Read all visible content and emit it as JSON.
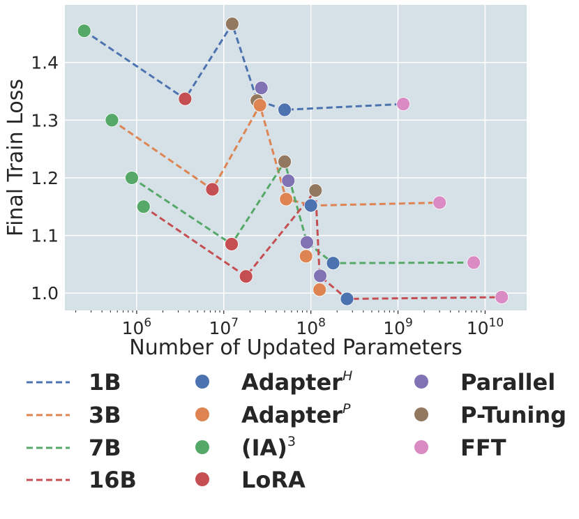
{
  "chart_data": {
    "type": "scatter",
    "title": "",
    "xlabel": "Number of Updated Parameters",
    "ylabel": "Final Train Loss",
    "xscale": "log",
    "xlim": [
      150000,
      30000000000
    ],
    "ylim": [
      0.97,
      1.5
    ],
    "yticks": [
      1.0,
      1.1,
      1.2,
      1.3,
      1.4
    ],
    "ytick_labels": [
      "1.0",
      "1.1",
      "1.2",
      "1.3",
      "1.4"
    ],
    "xticks": [
      1000000,
      10000000,
      100000000,
      1000000000,
      10000000000
    ],
    "xtick_labels": [
      {
        "base": "10",
        "exp": "6"
      },
      {
        "base": "10",
        "exp": "7"
      },
      {
        "base": "10",
        "exp": "8"
      },
      {
        "base": "10",
        "exp": "9"
      },
      {
        "base": "10",
        "exp": "10"
      }
    ],
    "grid": true,
    "legend_position": "bottom",
    "methods": [
      {
        "key": "adapter_h",
        "label": "Adapter",
        "sup": "H",
        "italic_sup": true,
        "color": "#4C72B0"
      },
      {
        "key": "adapter_p",
        "label": "Adapter",
        "sup": "P",
        "italic_sup": true,
        "color": "#DD8452"
      },
      {
        "key": "ia3",
        "label": "(IA)",
        "sup": "3",
        "italic_sup": false,
        "color": "#55A868"
      },
      {
        "key": "lora",
        "label": "LoRA",
        "sup": "",
        "italic_sup": false,
        "color": "#C44E52"
      },
      {
        "key": "parallel",
        "label": "Parallel",
        "sup": "",
        "italic_sup": false,
        "color": "#8172B3"
      },
      {
        "key": "ptuning",
        "label": "P-Tuning",
        "sup": "",
        "italic_sup": false,
        "color": "#937860"
      },
      {
        "key": "fft",
        "label": "FFT",
        "sup": "",
        "italic_sup": false,
        "color": "#DA8BC3"
      }
    ],
    "series": [
      {
        "name": "1B",
        "color": "#4C72B0",
        "line": [
          [
            250000,
            1.455
          ],
          [
            3600000,
            1.337
          ],
          [
            12500000,
            1.467
          ],
          [
            24000000,
            1.335
          ],
          [
            50000000,
            1.318
          ],
          [
            1150000000,
            1.328
          ]
        ],
        "points": [
          {
            "x": 250000,
            "y": 1.455,
            "method": "ia3"
          },
          {
            "x": 3600000,
            "y": 1.337,
            "method": "lora"
          },
          {
            "x": 12500000,
            "y": 1.467,
            "method": "ptuning"
          },
          {
            "x": 24000000,
            "y": 1.334,
            "method": "ptuning"
          },
          {
            "x": 27000000,
            "y": 1.356,
            "method": "parallel"
          },
          {
            "x": 50000000,
            "y": 1.318,
            "method": "adapter_h"
          },
          {
            "x": 1150000000,
            "y": 1.328,
            "method": "fft"
          }
        ]
      },
      {
        "name": "3B",
        "color": "#DD8452",
        "line": [
          [
            520000,
            1.3
          ],
          [
            7400000,
            1.18
          ],
          [
            26000000,
            1.326
          ],
          [
            52000000,
            1.163
          ],
          [
            110000000,
            1.152
          ],
          [
            3000000000,
            1.157
          ]
        ],
        "points": [
          {
            "x": 520000,
            "y": 1.3,
            "method": "ia3"
          },
          {
            "x": 7400000,
            "y": 1.18,
            "method": "lora"
          },
          {
            "x": 26000000,
            "y": 1.326,
            "method": "adapter_p"
          },
          {
            "x": 52000000,
            "y": 1.163,
            "method": "adapter_p"
          },
          {
            "x": 3000000000,
            "y": 1.157,
            "method": "fft"
          }
        ]
      },
      {
        "name": "7B",
        "color": "#55A868",
        "line": [
          [
            880000,
            1.2
          ],
          [
            12300000,
            1.085
          ],
          [
            50000000,
            1.228
          ],
          [
            90000000,
            1.088
          ],
          [
            180000000,
            1.052
          ],
          [
            7400000000,
            1.053
          ]
        ],
        "points": [
          {
            "x": 880000,
            "y": 1.2,
            "method": "ia3"
          },
          {
            "x": 12300000,
            "y": 1.085,
            "method": "lora"
          },
          {
            "x": 50000000,
            "y": 1.228,
            "method": "ptuning"
          },
          {
            "x": 55000000,
            "y": 1.195,
            "method": "parallel"
          },
          {
            "x": 90000000,
            "y": 1.088,
            "method": "parallel"
          },
          {
            "x": 88000000,
            "y": 1.064,
            "method": "adapter_p"
          },
          {
            "x": 180000000,
            "y": 1.052,
            "method": "adapter_h"
          },
          {
            "x": 7400000000,
            "y": 1.053,
            "method": "fft"
          }
        ]
      },
      {
        "name": "16B",
        "color": "#C44E52",
        "line": [
          [
            1200000,
            1.15
          ],
          [
            18000000,
            1.029
          ],
          [
            113000000,
            1.178
          ],
          [
            126000000,
            1.03
          ],
          [
            260000000,
            0.99
          ],
          [
            15500000000,
            0.993
          ]
        ],
        "points": [
          {
            "x": 1200000,
            "y": 1.15,
            "method": "ia3"
          },
          {
            "x": 18000000,
            "y": 1.029,
            "method": "lora"
          },
          {
            "x": 100000000,
            "y": 1.152,
            "method": "adapter_h"
          },
          {
            "x": 113000000,
            "y": 1.178,
            "method": "ptuning"
          },
          {
            "x": 128000000,
            "y": 1.03,
            "method": "parallel"
          },
          {
            "x": 126000000,
            "y": 1.006,
            "method": "adapter_p"
          },
          {
            "x": 260000000,
            "y": 0.99,
            "method": "adapter_h"
          },
          {
            "x": 15500000000,
            "y": 0.993,
            "method": "fft"
          }
        ]
      }
    ]
  }
}
